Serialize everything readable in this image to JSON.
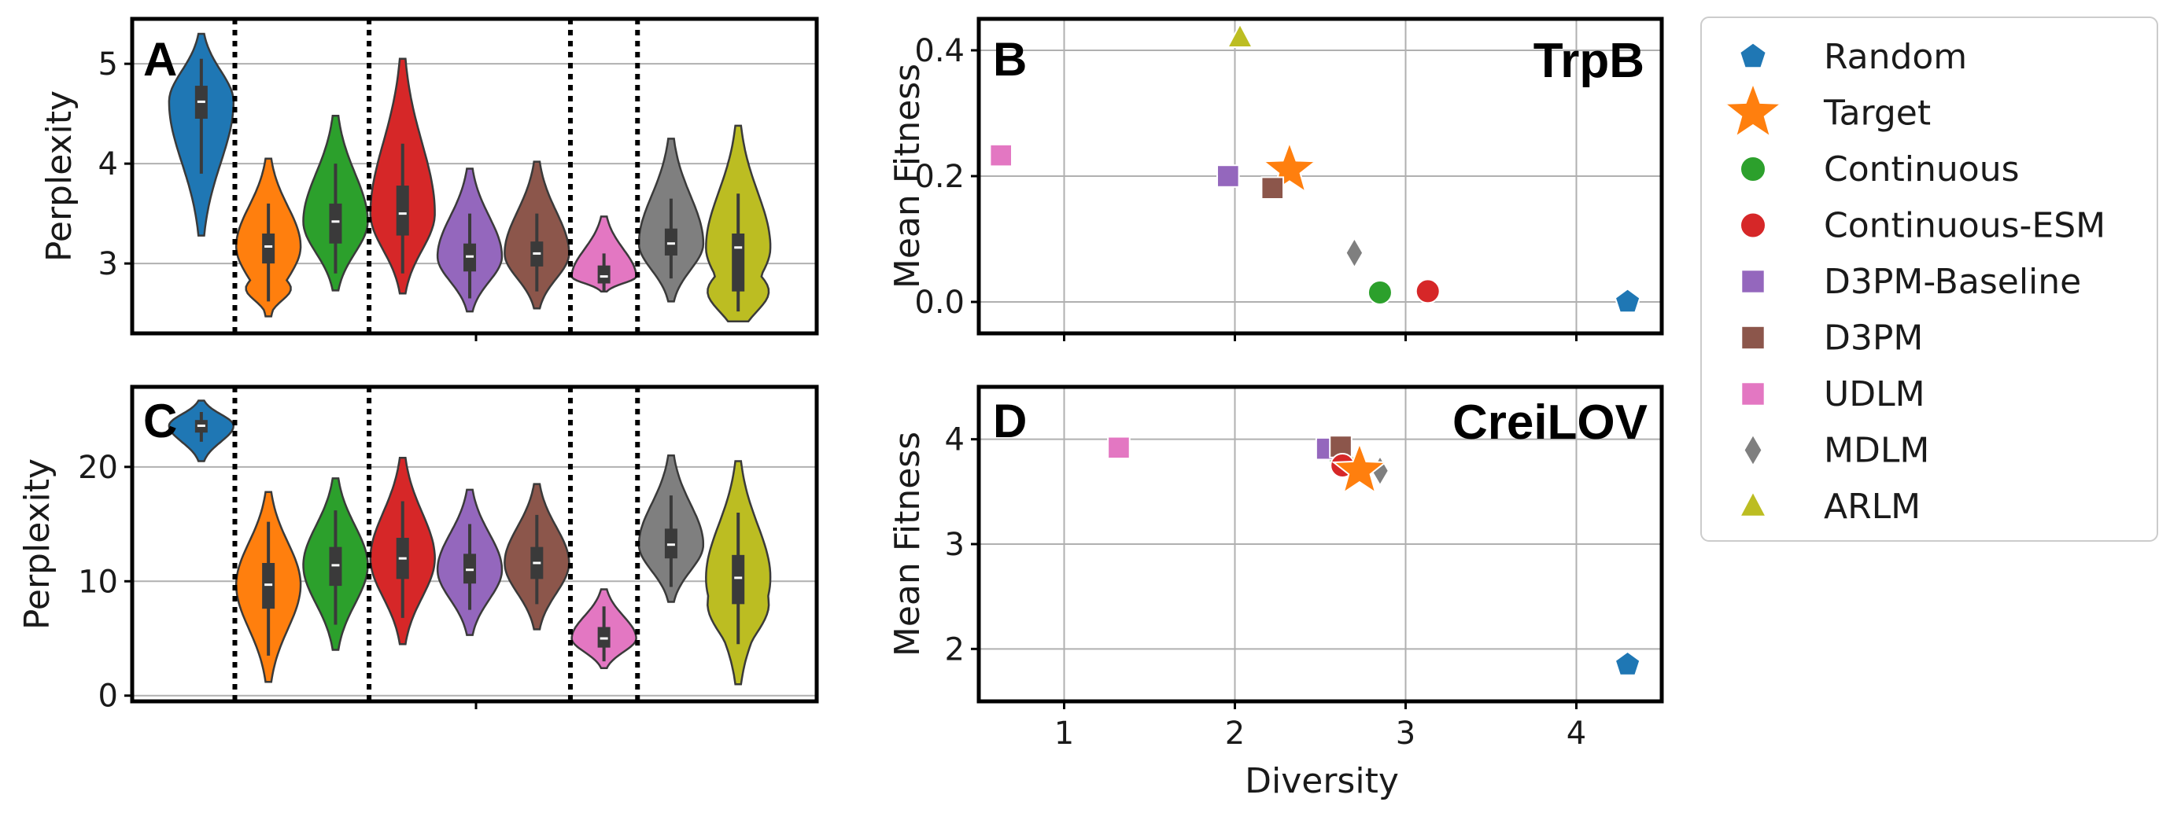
{
  "chart_data": [
    {
      "panel": "A",
      "type": "violin",
      "ylabel": "Perplexity",
      "ylim": [
        2.3,
        5.45
      ],
      "yticks": [
        3,
        4,
        5
      ],
      "grid": true,
      "separators_after_group_index": [
        0,
        2,
        5,
        6
      ],
      "groups": [
        {
          "name": "Random",
          "color": "#1f77b4",
          "median": 4.62,
          "q1": 4.45,
          "q3": 4.78,
          "wlo": 3.9,
          "whi": 5.05,
          "min": 3.28,
          "max": 5.3
        },
        {
          "name": "Target",
          "color": "#ff7f0e",
          "median": 3.17,
          "q1": 3.0,
          "q3": 3.3,
          "wlo": 2.62,
          "whi": 3.6,
          "min": 2.47,
          "max": 4.05
        },
        {
          "name": "Continuous",
          "color": "#2ca02c",
          "median": 3.42,
          "q1": 3.2,
          "q3": 3.6,
          "wlo": 2.9,
          "whi": 4.0,
          "min": 2.73,
          "max": 4.48
        },
        {
          "name": "Continuous-ESM",
          "color": "#d62728",
          "median": 3.5,
          "q1": 3.28,
          "q3": 3.78,
          "wlo": 2.9,
          "whi": 4.2,
          "min": 2.7,
          "max": 5.05
        },
        {
          "name": "D3PM-Baseline",
          "color": "#9467bd",
          "median": 3.07,
          "q1": 2.92,
          "q3": 3.2,
          "wlo": 2.65,
          "whi": 3.5,
          "min": 2.52,
          "max": 3.95
        },
        {
          "name": "D3PM",
          "color": "#8c564b",
          "median": 3.1,
          "q1": 2.97,
          "q3": 3.22,
          "wlo": 2.72,
          "whi": 3.5,
          "min": 2.55,
          "max": 4.02
        },
        {
          "name": "UDLM",
          "color": "#e377c2",
          "median": 2.87,
          "q1": 2.8,
          "q3": 2.98,
          "wlo": 2.72,
          "whi": 3.1,
          "min": 2.72,
          "max": 3.47
        },
        {
          "name": "MDLM",
          "color": "#7f7f7f",
          "median": 3.2,
          "q1": 3.08,
          "q3": 3.35,
          "wlo": 2.85,
          "whi": 3.65,
          "min": 2.62,
          "max": 4.25
        },
        {
          "name": "ARLM",
          "color": "#bcbd22",
          "median": 3.16,
          "q1": 2.72,
          "q3": 3.3,
          "wlo": 2.52,
          "whi": 3.7,
          "min": 2.42,
          "max": 4.38
        }
      ]
    },
    {
      "panel": "B",
      "type": "scatter",
      "title": "TrpB",
      "ylabel": "Mean Fitness",
      "xlim": [
        0.5,
        4.5
      ],
      "ylim": [
        -0.05,
        0.45
      ],
      "xticks": [
        1,
        2,
        3,
        4
      ],
      "yticks": [
        0.0,
        0.2,
        0.4
      ],
      "yticklabels": [
        "0.0",
        "0.2",
        "0.4"
      ],
      "grid": true,
      "points": [
        {
          "name": "Random",
          "x": 4.3,
          "y": 0.0
        },
        {
          "name": "Target",
          "x": 2.32,
          "y": 0.21
        },
        {
          "name": "Continuous",
          "x": 2.85,
          "y": 0.015
        },
        {
          "name": "Continuous-ESM",
          "x": 3.13,
          "y": 0.017
        },
        {
          "name": "D3PM-Baseline",
          "x": 1.96,
          "y": 0.2
        },
        {
          "name": "D3PM",
          "x": 2.22,
          "y": 0.181
        },
        {
          "name": "UDLM",
          "x": 0.63,
          "y": 0.233
        },
        {
          "name": "MDLM",
          "x": 2.7,
          "y": 0.078
        },
        {
          "name": "ARLM",
          "x": 2.03,
          "y": 0.42
        }
      ]
    },
    {
      "panel": "C",
      "type": "violin",
      "ylabel": "Perplexity",
      "ylim": [
        -0.5,
        27.0
      ],
      "yticks": [
        0,
        10,
        20
      ],
      "grid": true,
      "separators_after_group_index": [
        0,
        2,
        5,
        6
      ],
      "groups": [
        {
          "name": "Random",
          "color": "#1f77b4",
          "median": 23.6,
          "q1": 23.0,
          "q3": 24.1,
          "wlo": 22.2,
          "whi": 24.8,
          "min": 20.5,
          "max": 25.8
        },
        {
          "name": "Target",
          "color": "#ff7f0e",
          "median": 9.7,
          "q1": 7.6,
          "q3": 11.6,
          "wlo": 3.5,
          "whi": 15.2,
          "min": 1.2,
          "max": 17.8
        },
        {
          "name": "Continuous",
          "color": "#2ca02c",
          "median": 11.4,
          "q1": 9.6,
          "q3": 13.0,
          "wlo": 6.2,
          "whi": 16.2,
          "min": 4.0,
          "max": 19.0
        },
        {
          "name": "Continuous-ESM",
          "color": "#d62728",
          "median": 12.0,
          "q1": 10.2,
          "q3": 13.8,
          "wlo": 6.8,
          "whi": 17.0,
          "min": 4.5,
          "max": 20.8
        },
        {
          "name": "D3PM-Baseline",
          "color": "#9467bd",
          "median": 11.0,
          "q1": 9.8,
          "q3": 12.4,
          "wlo": 7.5,
          "whi": 15.0,
          "min": 5.3,
          "max": 18.0
        },
        {
          "name": "D3PM",
          "color": "#8c564b",
          "median": 11.6,
          "q1": 10.2,
          "q3": 13.0,
          "wlo": 8.0,
          "whi": 15.8,
          "min": 5.8,
          "max": 18.5
        },
        {
          "name": "UDLM",
          "color": "#e377c2",
          "median": 5.0,
          "q1": 4.2,
          "q3": 6.0,
          "wlo": 3.0,
          "whi": 7.8,
          "min": 2.4,
          "max": 9.3
        },
        {
          "name": "MDLM",
          "color": "#7f7f7f",
          "median": 13.2,
          "q1": 12.0,
          "q3": 14.6,
          "wlo": 9.5,
          "whi": 17.5,
          "min": 8.2,
          "max": 21.0
        },
        {
          "name": "ARLM",
          "color": "#bcbd22",
          "median": 10.3,
          "q1": 8.0,
          "q3": 12.3,
          "wlo": 4.5,
          "whi": 16.0,
          "min": 1.0,
          "max": 20.5
        }
      ]
    },
    {
      "panel": "D",
      "type": "scatter",
      "title": "CreiLOV",
      "xlabel": "Diversity",
      "ylabel": "Mean Fitness",
      "xlim": [
        0.5,
        4.5
      ],
      "ylim": [
        1.5,
        4.5
      ],
      "xticks": [
        1,
        2,
        3,
        4
      ],
      "yticks": [
        2,
        3,
        4
      ],
      "yticklabels": [
        "2",
        "3",
        "4"
      ],
      "grid": true,
      "points": [
        {
          "name": "Random",
          "x": 4.3,
          "y": 1.85
        },
        {
          "name": "Continuous",
          "x": 2.62,
          "y": 3.82
        },
        {
          "name": "ARLM",
          "x": 2.65,
          "y": 3.84
        },
        {
          "name": "D3PM-Baseline",
          "x": 2.54,
          "y": 3.91
        },
        {
          "name": "D3PM",
          "x": 2.62,
          "y": 3.93
        },
        {
          "name": "UDLM",
          "x": 1.32,
          "y": 3.92
        },
        {
          "name": "Continuous-ESM",
          "x": 2.63,
          "y": 3.75
        },
        {
          "name": "MDLM",
          "x": 2.85,
          "y": 3.7
        },
        {
          "name": "Target",
          "x": 2.73,
          "y": 3.7
        }
      ]
    }
  ],
  "legend": {
    "entries": [
      {
        "name": "Random",
        "label": "Random",
        "color": "#1f77b4",
        "marker": "pentagon"
      },
      {
        "name": "Target",
        "label": "Target",
        "color": "#ff7f0e",
        "marker": "star"
      },
      {
        "name": "Continuous",
        "label": "Continuous",
        "color": "#2ca02c",
        "marker": "circle"
      },
      {
        "name": "Continuous-ESM",
        "label": "Continuous-ESM",
        "color": "#d62728",
        "marker": "circle"
      },
      {
        "name": "D3PM-Baseline",
        "label": "D3PM-Baseline",
        "color": "#9467bd",
        "marker": "square"
      },
      {
        "name": "D3PM",
        "label": "D3PM",
        "color": "#8c564b",
        "marker": "square"
      },
      {
        "name": "UDLM",
        "label": "UDLM",
        "color": "#e377c2",
        "marker": "square"
      },
      {
        "name": "MDLM",
        "label": "MDLM",
        "color": "#7f7f7f",
        "marker": "diamond"
      },
      {
        "name": "ARLM",
        "label": "ARLM",
        "color": "#bcbd22",
        "marker": "triangle"
      }
    ]
  }
}
